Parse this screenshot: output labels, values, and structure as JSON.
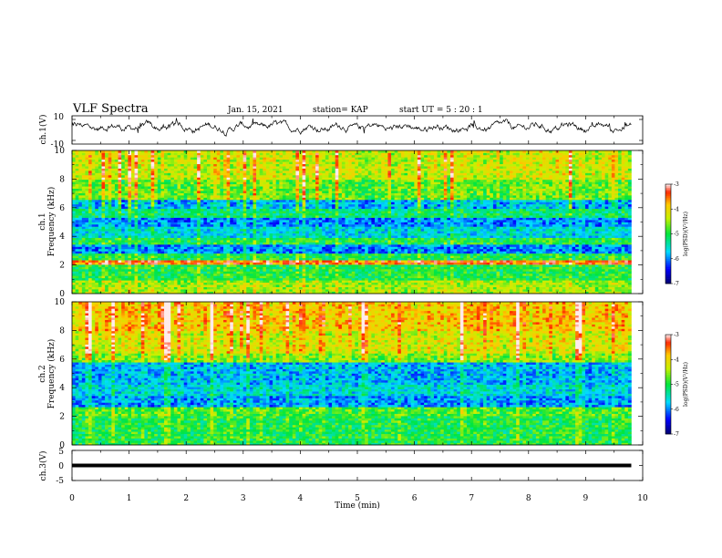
{
  "header": {
    "title": "VLF Spectra",
    "date": "Jan. 15, 2021",
    "station": "station= KAP",
    "start": "start  UT =  5 : 20 : 1"
  },
  "chart_data": [
    {
      "type": "line",
      "panel": "waveform-ch1",
      "ylabel": "ch.1(V)",
      "ylim": [
        -10,
        10
      ],
      "y_ticks": [
        "10",
        "-10"
      ],
      "xlim": [
        0,
        10
      ],
      "x_extent": [
        0,
        9.8
      ],
      "approx_level": 2,
      "series": []
    },
    {
      "type": "heatmap",
      "panel": "spectrogram-ch1",
      "ylabel": "ch.1\nFrequency (kHz)",
      "ylim": [
        0,
        10
      ],
      "y_ticks": [
        "0",
        "2",
        "4",
        "6",
        "8",
        "10"
      ],
      "xlim": [
        0,
        10
      ],
      "x_extent": [
        0,
        9.8
      ],
      "colorbar": {
        "label": "log(PSD)(V²/Hz)",
        "range": [
          -7,
          -3
        ],
        "ticks": [
          "-3",
          "-4",
          "-5",
          "-6",
          "-7"
        ]
      },
      "bands": [
        {
          "f": [
            0.0,
            1.0
          ],
          "level": -4.5
        },
        {
          "f": [
            1.0,
            2.0
          ],
          "level": -5.0
        },
        {
          "f": [
            2.0,
            2.3
          ],
          "level": -3.5
        },
        {
          "f": [
            2.3,
            2.8
          ],
          "level": -5.0
        },
        {
          "f": [
            2.8,
            3.4
          ],
          "level": -6.0
        },
        {
          "f": [
            3.4,
            3.9
          ],
          "level": -5.0
        },
        {
          "f": [
            3.9,
            4.7
          ],
          "level": -5.6
        },
        {
          "f": [
            4.7,
            5.3
          ],
          "level": -6.0
        },
        {
          "f": [
            5.3,
            6.0
          ],
          "level": -5.2
        },
        {
          "f": [
            6.0,
            6.5
          ],
          "level": -5.8
        },
        {
          "f": [
            6.5,
            8.0
          ],
          "level": -4.7
        },
        {
          "f": [
            8.0,
            10.0
          ],
          "level": -4.3
        }
      ]
    },
    {
      "type": "heatmap",
      "panel": "spectrogram-ch2",
      "ylabel": "ch.2\nFrequency (kHz)",
      "ylim": [
        0,
        10
      ],
      "y_ticks": [
        "0",
        "2",
        "4",
        "6",
        "8",
        "10"
      ],
      "xlim": [
        0,
        10
      ],
      "x_extent": [
        0,
        9.8
      ],
      "colorbar": {
        "label": "log(PSD)(V²/Hz)",
        "range": [
          -7,
          -3
        ],
        "ticks": [
          "-3",
          "-4",
          "-5",
          "-6",
          "-7"
        ]
      },
      "bands": [
        {
          "f": [
            0.0,
            1.0
          ],
          "level": -5.0
        },
        {
          "f": [
            1.0,
            2.0
          ],
          "level": -5.0
        },
        {
          "f": [
            2.0,
            2.6
          ],
          "level": -4.8
        },
        {
          "f": [
            2.6,
            3.4
          ],
          "level": -5.9
        },
        {
          "f": [
            3.4,
            4.2
          ],
          "level": -5.6
        },
        {
          "f": [
            4.2,
            5.8
          ],
          "level": -5.8
        },
        {
          "f": [
            5.8,
            6.4
          ],
          "level": -4.6
        },
        {
          "f": [
            6.4,
            8.0
          ],
          "level": -4.2
        },
        {
          "f": [
            8.0,
            10.0
          ],
          "level": -3.9
        }
      ]
    },
    {
      "type": "line",
      "panel": "waveform-ch3",
      "ylabel": "ch.3(V)",
      "ylim": [
        -5,
        5
      ],
      "y_ticks": [
        "5",
        "0",
        "-5"
      ],
      "xlim": [
        0,
        10
      ],
      "x_extent": [
        0,
        9.8
      ],
      "approx_level": 0,
      "band_halfwidth": 0.6
    }
  ],
  "xaxis": {
    "label": "Time (min)",
    "ticks": [
      "0",
      "1",
      "2",
      "3",
      "4",
      "5",
      "6",
      "7",
      "8",
      "9",
      "10"
    ]
  }
}
